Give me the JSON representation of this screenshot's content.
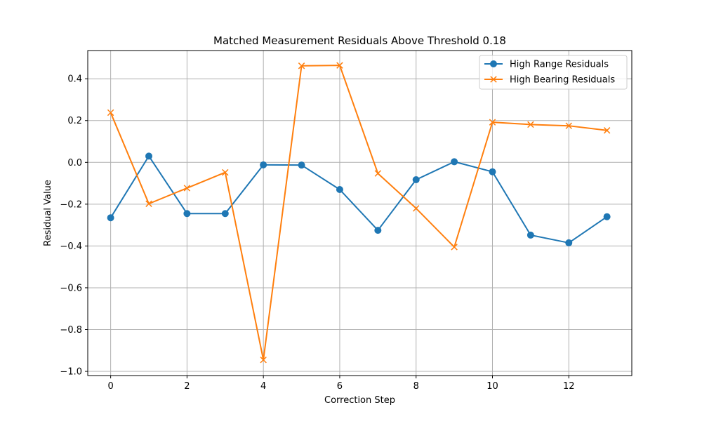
{
  "chart_data": {
    "type": "line",
    "title": "Matched Measurement Residuals Above Threshold 0.18",
    "xlabel": "Correction Step",
    "ylabel": "Residual Value",
    "xlim": [
      -0.6,
      13.65
    ],
    "ylim": [
      -1.02,
      0.535
    ],
    "xticks": [
      0,
      2,
      4,
      6,
      8,
      10,
      12
    ],
    "xtick_labels": [
      "0",
      "2",
      "4",
      "6",
      "8",
      "10",
      "12"
    ],
    "yticks": [
      -1.0,
      -0.8,
      -0.6,
      -0.4,
      -0.2,
      0.0,
      0.2,
      0.4
    ],
    "ytick_labels": [
      "−1.0",
      "−0.8",
      "−0.6",
      "−0.4",
      "−0.2",
      "0.0",
      "0.2",
      "0.4"
    ],
    "grid": true,
    "legend_position": "top-right",
    "series": [
      {
        "name": "High Range Residuals",
        "color": "#1f77b4",
        "marker": "circle",
        "x": [
          0,
          1,
          2,
          3,
          4,
          5,
          6,
          7,
          8,
          9,
          10,
          11,
          12,
          13
        ],
        "values": [
          -0.265,
          0.03,
          -0.245,
          -0.245,
          -0.012,
          -0.013,
          -0.13,
          -0.325,
          -0.083,
          0.003,
          -0.045,
          -0.348,
          -0.385,
          -0.26
        ]
      },
      {
        "name": "High Bearing Residuals",
        "color": "#ff7f0e",
        "marker": "x",
        "x": [
          0,
          1,
          2,
          3,
          4,
          5,
          6,
          7,
          8,
          9,
          10,
          11,
          12,
          13
        ],
        "values": [
          0.238,
          -0.198,
          -0.123,
          -0.048,
          -0.945,
          0.462,
          0.464,
          -0.053,
          -0.22,
          -0.405,
          0.192,
          0.181,
          0.175,
          0.153
        ]
      }
    ]
  }
}
